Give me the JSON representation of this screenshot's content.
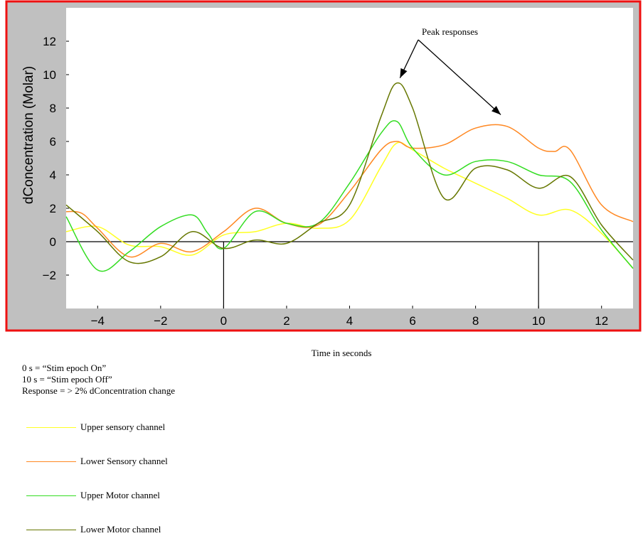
{
  "chart_data": {
    "type": "line",
    "title": "",
    "xlabel": "Time in seconds",
    "ylabel": "dConcentration (Molar)",
    "xlim": [
      -5,
      13
    ],
    "ylim": [
      -4,
      14
    ],
    "xticks": [
      -4,
      -2,
      0,
      2,
      4,
      6,
      8,
      10,
      12
    ],
    "yticks": [
      -2,
      0,
      2,
      4,
      6,
      8,
      10,
      12
    ],
    "grid": false,
    "legend_position": "below",
    "markers": [
      0,
      10
    ],
    "annotation": {
      "text": "Peak responses",
      "targets": [
        [
          5.6,
          9.8
        ],
        [
          8.8,
          7.6
        ]
      ]
    },
    "series": [
      {
        "name": "Upper sensory channel",
        "color": "#ffff22",
        "x": [
          -5,
          -4,
          -3,
          -2,
          -1,
          0,
          1,
          2,
          3,
          4,
          5,
          5.5,
          6,
          7,
          8,
          9,
          10,
          11,
          12,
          13
        ],
        "y": [
          0.6,
          0.9,
          -0.2,
          -0.3,
          -0.8,
          0.4,
          0.6,
          1.1,
          0.8,
          1.3,
          4.5,
          5.9,
          5.5,
          4.4,
          3.5,
          2.6,
          1.6,
          1.9,
          0.5,
          -1.6
        ]
      },
      {
        "name": "Lower Sensory channel",
        "color": "#ff8822",
        "x": [
          -5,
          -4.5,
          -4,
          -3,
          -2,
          -1,
          0,
          1,
          2,
          3,
          4,
          5,
          5.5,
          6,
          7,
          8,
          9,
          10,
          10.5,
          11,
          12,
          13
        ],
        "y": [
          1.8,
          1.7,
          0.8,
          -0.9,
          -0.1,
          -0.6,
          0.6,
          2.0,
          1.1,
          1.0,
          3.0,
          5.5,
          6.0,
          5.6,
          5.8,
          6.8,
          6.9,
          5.6,
          5.4,
          5.5,
          2.2,
          1.2
        ]
      },
      {
        "name": "Upper Motor channel",
        "color": "#33dd22",
        "x": [
          -5,
          -4,
          -3,
          -2,
          -1,
          -0.5,
          0,
          1,
          2,
          3,
          4,
          5,
          5.5,
          6,
          7,
          8,
          9,
          10,
          11,
          12,
          13
        ],
        "y": [
          1.5,
          -1.7,
          -0.6,
          0.9,
          1.6,
          0.5,
          -0.4,
          1.8,
          1.1,
          1.1,
          3.5,
          6.5,
          7.2,
          5.6,
          4.0,
          4.8,
          4.8,
          4.0,
          3.6,
          0.7,
          -1.6
        ]
      },
      {
        "name": "Lower Motor channel",
        "color": "#667700",
        "x": [
          -5,
          -4,
          -3,
          -2,
          -1,
          0,
          1,
          2,
          3,
          4,
          5,
          5.5,
          6,
          7,
          8,
          9,
          10,
          11,
          12,
          13
        ],
        "y": [
          2.2,
          0.6,
          -1.2,
          -0.9,
          0.6,
          -0.4,
          0.1,
          -0.1,
          1.1,
          2.2,
          7.5,
          9.5,
          8.0,
          2.6,
          4.4,
          4.3,
          3.2,
          3.9,
          1.0,
          -1.1
        ]
      }
    ]
  },
  "notes": [
    "0 s = “Stim epoch On”",
    "10 s = “Stim epoch Off”",
    "Response = > 2% dConcentration change"
  ],
  "colors": {
    "frame": "#ee1111",
    "panel": "#c0c0c0",
    "plot_bg": "#ffffff"
  }
}
